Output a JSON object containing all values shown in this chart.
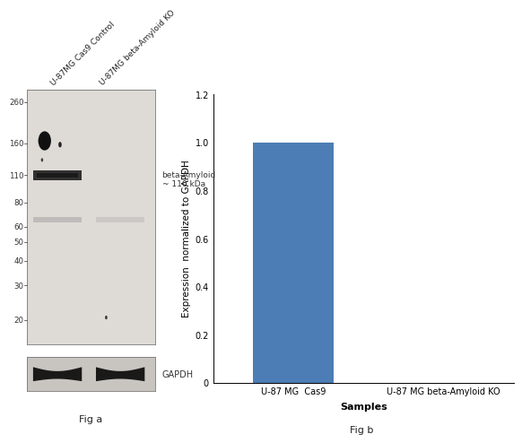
{
  "fig_width": 6.5,
  "fig_height": 4.73,
  "background_color": "#ffffff",
  "wb_panel": {
    "mw_labels": [
      "260",
      "160",
      "110",
      "80",
      "60",
      "50",
      "40",
      "30",
      "20"
    ],
    "mw_values": [
      260,
      160,
      110,
      80,
      60,
      50,
      40,
      30,
      20
    ],
    "col_labels": [
      "U-87MG Cas9 Control",
      "U-87MG beta-Amyloid KO"
    ],
    "band_annotation": "beta-Amyloid\n~ 110 kDa",
    "gapdh_label": "GAPDH",
    "fig_label": "Fig a",
    "blot_bg_color": "#dedad6",
    "gapdh_bg_color": "#c8c4c0",
    "band_strong_color": "#1a1a1a",
    "band_faint_color": "#aaaaaa",
    "blob_color": "#111111"
  },
  "bar_panel": {
    "categories": [
      "U-87 MG  Cas9",
      "U-87 MG beta-Amyloid KO"
    ],
    "values": [
      1.0,
      0.0
    ],
    "bar_color": "#4d7db5",
    "bar_width": 0.4,
    "ylim": [
      0,
      1.2
    ],
    "yticks": [
      0,
      0.2,
      0.4,
      0.6,
      0.8,
      1.0,
      1.2
    ],
    "ylabel": "Expression  normalized to GAPDH",
    "xlabel": "Samples",
    "fig_label": "Fig b",
    "label_fontsize": 7.5,
    "tick_fontsize": 7
  }
}
